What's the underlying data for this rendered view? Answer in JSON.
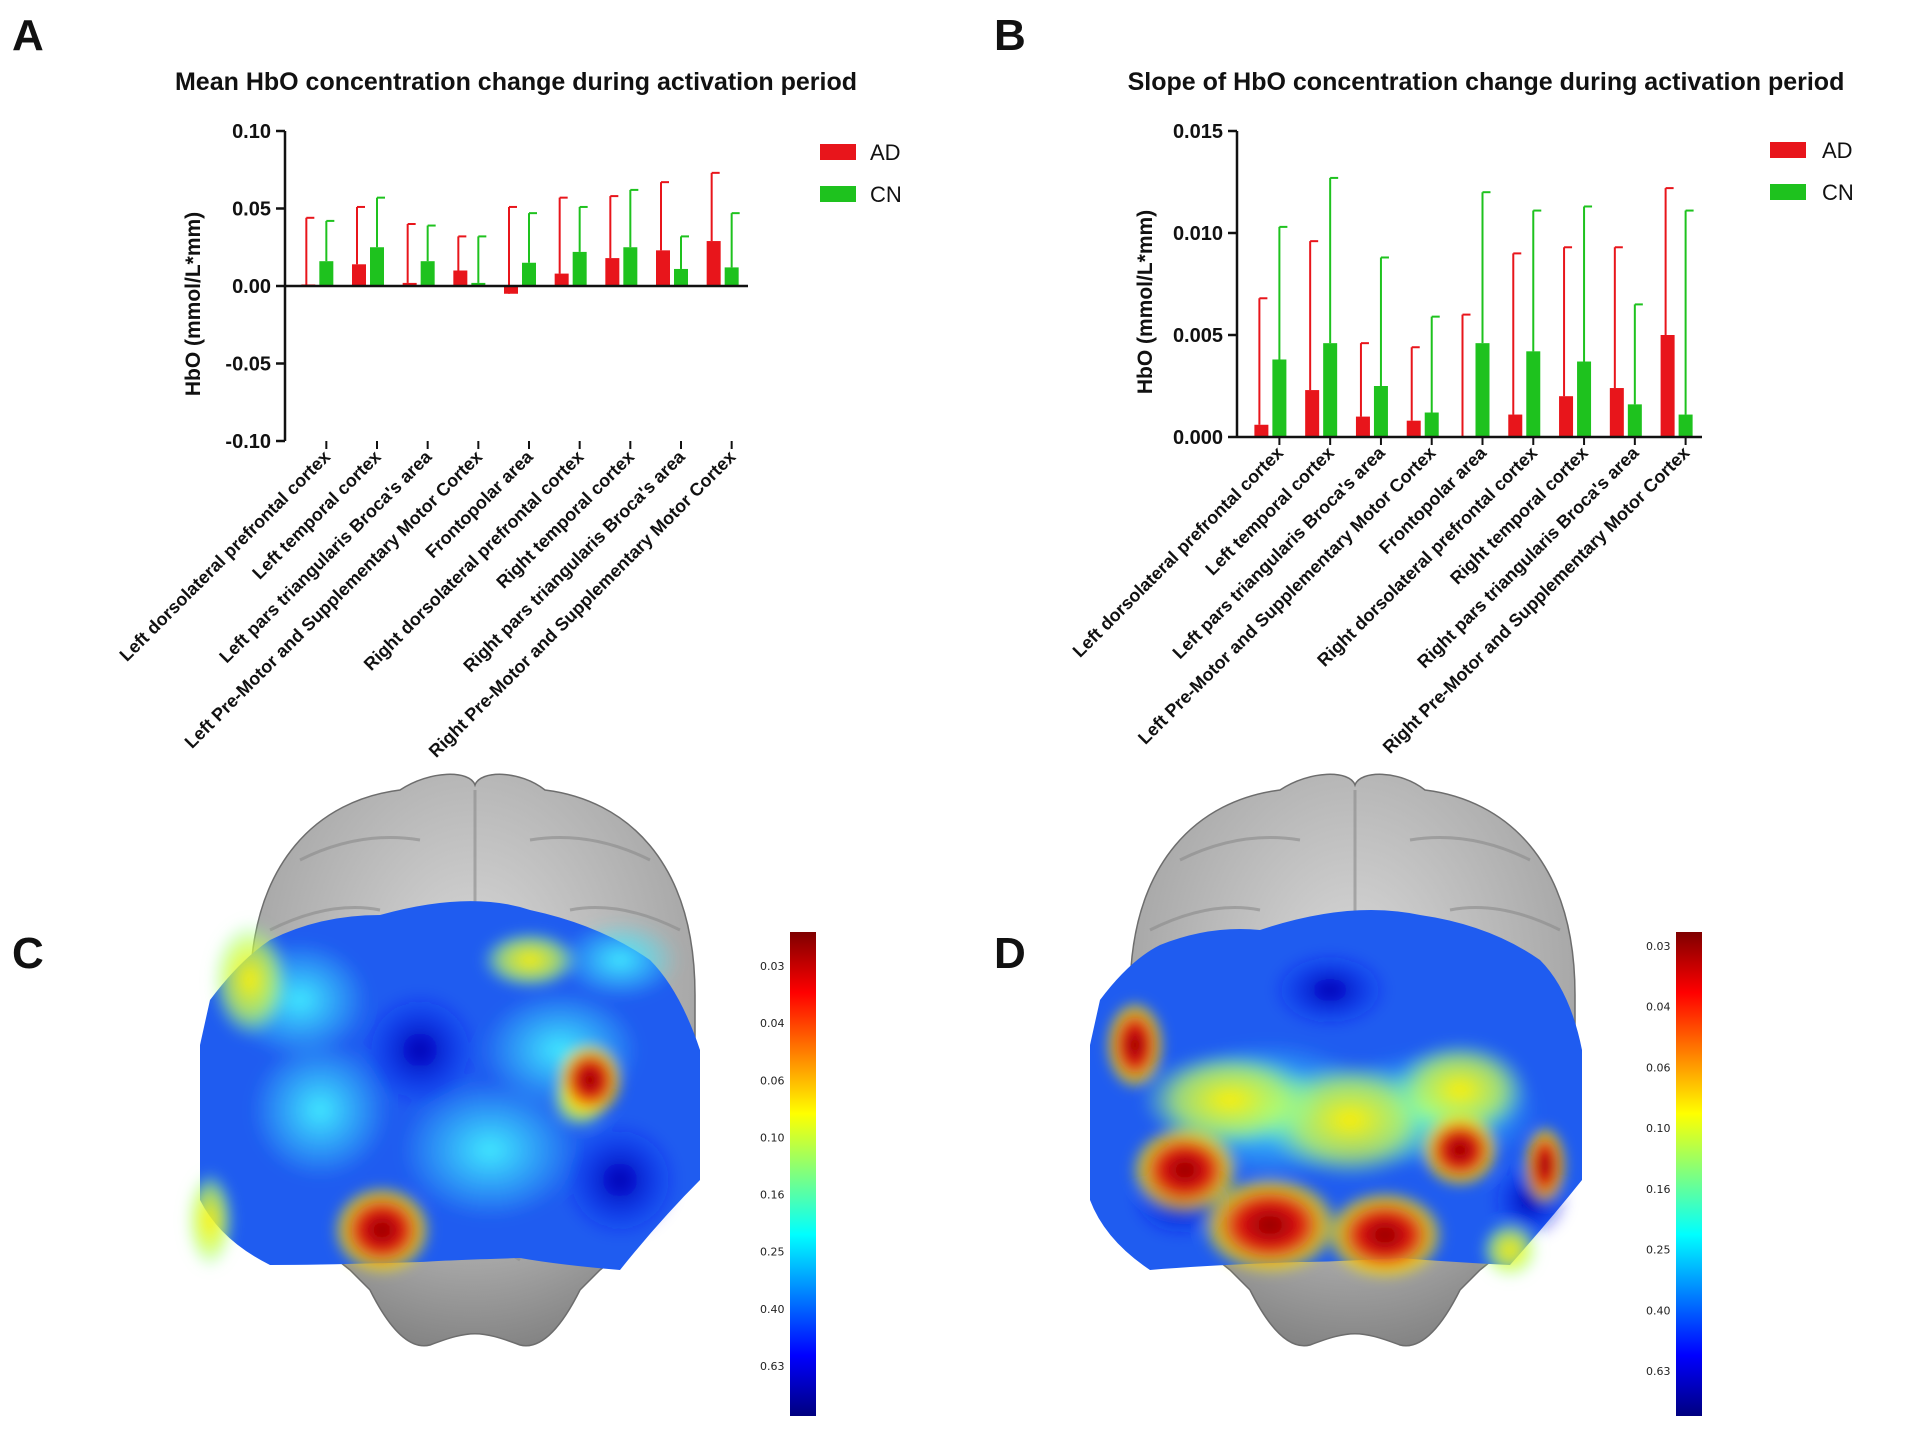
{
  "colors": {
    "AD": "#e8151b",
    "CN": "#1ec21e"
  },
  "panels": {
    "A": {
      "letter": "A"
    },
    "B": {
      "letter": "B"
    },
    "C": {
      "letter": "C"
    },
    "D": {
      "letter": "D"
    }
  },
  "chart_data": [
    {
      "type": "bar",
      "panel": "A",
      "title": "Mean HbO concentration change during activation period",
      "ylabel": "HbO (mmol/L*mm)",
      "xlabel": "",
      "ylim": [
        -0.1,
        0.1
      ],
      "yticks": [
        0.1,
        0.05,
        0.0,
        -0.05,
        -0.1
      ],
      "ytick_labels": [
        "0.10",
        "0.05",
        "0.00",
        "-0.05",
        "-0.10"
      ],
      "legend_position": "top-right",
      "categories": [
        "Left dorsolateral prefrontal cortex",
        "Left temporal cortex",
        "Left pars triangularis Broca's area",
        "Left Pre-Motor and Supplementary Motor Cortex",
        "Frontopolar area",
        "Right dorsolateral prefrontal cortex",
        "Right temporal cortex",
        "Right pars triangularis Broca's area",
        "Right Pre-Motor and Supplementary Motor Cortex"
      ],
      "series": [
        {
          "name": "AD",
          "values": [
            0.001,
            0.014,
            0.002,
            0.01,
            -0.005,
            0.008,
            0.018,
            0.023,
            0.029
          ],
          "error_bars": [
            0.044,
            0.051,
            0.04,
            0.032,
            0.051,
            0.057,
            0.058,
            0.067,
            0.073
          ]
        },
        {
          "name": "CN",
          "values": [
            0.016,
            0.025,
            0.016,
            0.002,
            0.015,
            0.022,
            0.025,
            0.011,
            0.012
          ],
          "error_bars": [
            0.042,
            0.057,
            0.039,
            0.032,
            0.047,
            0.051,
            0.062,
            0.032,
            0.047
          ]
        }
      ]
    },
    {
      "type": "bar",
      "panel": "B",
      "title": "Slope of HbO concentration change during activation period",
      "ylabel": "HbO (mmol/L*mm)",
      "xlabel": "",
      "ylim": [
        0,
        0.015
      ],
      "yticks": [
        0.015,
        0.01,
        0.005,
        0.0
      ],
      "ytick_labels": [
        "0.015",
        "0.010",
        "0.005",
        "0.000"
      ],
      "legend_position": "top-right",
      "categories": [
        "Left dorsolateral prefrontal cortex",
        "Left temporal cortex",
        "Left pars triangularis Broca's area",
        "Left Pre-Motor and Supplementary Motor Cortex",
        "Frontopolar area",
        "Right dorsolateral prefrontal cortex",
        "Right temporal cortex",
        "Right pars triangularis Broca's area",
        "Right Pre-Motor and Supplementary Motor Cortex"
      ],
      "series": [
        {
          "name": "AD",
          "values": [
            0.0006,
            0.0023,
            0.001,
            0.0008,
            0.0,
            0.0011,
            0.002,
            0.0024,
            0.005
          ],
          "error_bars": [
            0.0068,
            0.0096,
            0.0046,
            0.0044,
            0.006,
            0.009,
            0.0093,
            0.0093,
            0.0122
          ]
        },
        {
          "name": "CN",
          "values": [
            0.0038,
            0.0046,
            0.0025,
            0.0012,
            0.0046,
            0.0042,
            0.0037,
            0.0016,
            0.0011
          ],
          "error_bars": [
            0.0103,
            0.0127,
            0.0088,
            0.0059,
            0.012,
            0.0111,
            0.0113,
            0.0065,
            0.0111
          ]
        }
      ]
    },
    {
      "type": "heatmap",
      "panel": "C",
      "title": "",
      "description_kind": "brain-surface-map",
      "colorbar_ticks": [
        "0.03",
        "0.04",
        "0.06",
        "0.10",
        "0.16",
        "0.25",
        "0.40",
        "0.63"
      ]
    },
    {
      "type": "heatmap",
      "panel": "D",
      "title": "",
      "description_kind": "brain-surface-map",
      "colorbar_ticks": [
        "0.03",
        "0.04",
        "0.06",
        "0.10",
        "0.16",
        "0.25",
        "0.40",
        "0.63"
      ]
    }
  ]
}
